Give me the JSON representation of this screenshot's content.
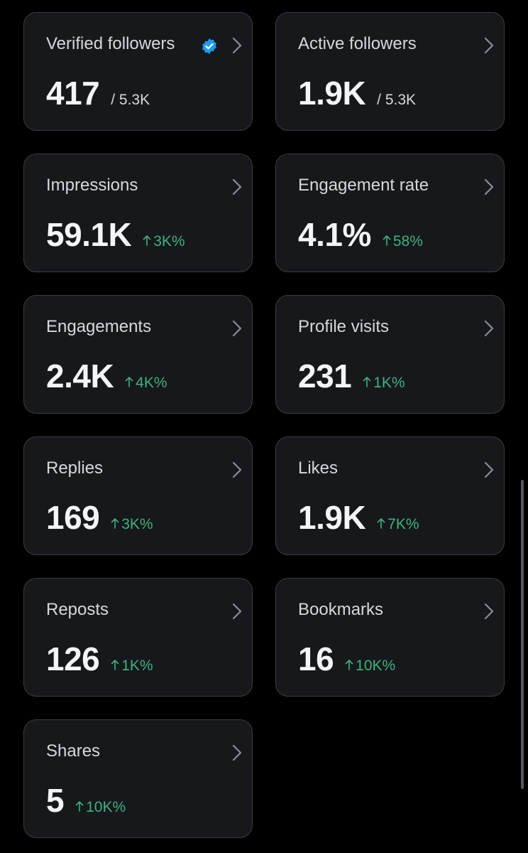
{
  "cards": [
    {
      "label": "Verified followers",
      "value": "417",
      "total": "/ 5.3K",
      "verified": true
    },
    {
      "label": "Active followers",
      "value": "1.9K",
      "total": "/ 5.3K"
    },
    {
      "label": "Impressions",
      "value": "59.1K",
      "change": "3K%"
    },
    {
      "label": "Engagement rate",
      "value": "4.1%",
      "change": "58%"
    },
    {
      "label": "Engagements",
      "value": "2.4K",
      "change": "4K%"
    },
    {
      "label": "Profile visits",
      "value": "231",
      "change": "1K%"
    },
    {
      "label": "Replies",
      "value": "169",
      "change": "3K%"
    },
    {
      "label": "Likes",
      "value": "1.9K",
      "change": "7K%"
    },
    {
      "label": "Reposts",
      "value": "126",
      "change": "1K%"
    },
    {
      "label": "Bookmarks",
      "value": "16",
      "change": "10K%"
    },
    {
      "label": "Shares",
      "value": "5",
      "change": "10K%"
    }
  ]
}
